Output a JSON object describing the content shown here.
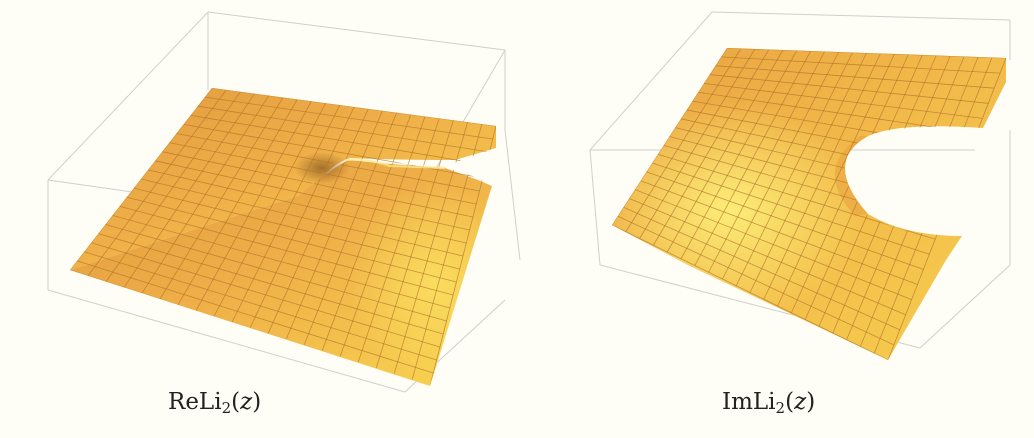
{
  "figures": [
    {
      "name": "real-part",
      "caption": {
        "prefix": "ReLi",
        "subscript": "2",
        "open": "(",
        "variable": "z",
        "close": ")"
      }
    },
    {
      "name": "imaginary-part",
      "caption": {
        "prefix": "ImLi",
        "subscript": "2",
        "open": "(",
        "variable": "z",
        "close": ")"
      }
    }
  ],
  "colors": {
    "background": "#fefdf6",
    "surface_light": "#f7d64c",
    "surface_mid": "#f0b04a",
    "surface_dark": "#dc8c36",
    "mesh": "#b87d2c",
    "box": "#c8c8c8"
  }
}
